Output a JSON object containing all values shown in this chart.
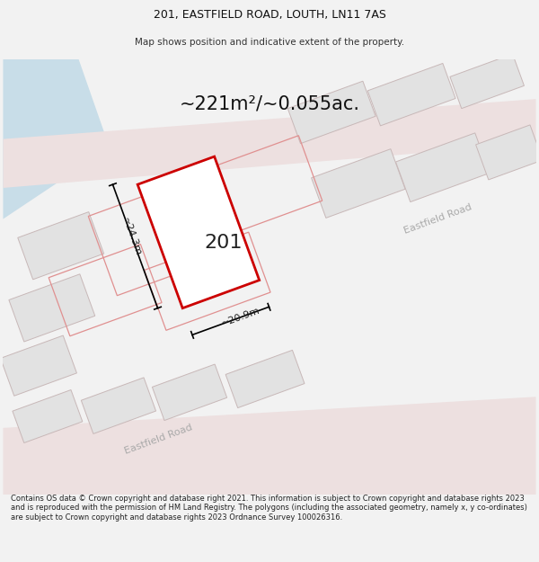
{
  "title": "201, EASTFIELD ROAD, LOUTH, LN11 7AS",
  "subtitle": "Map shows position and indicative extent of the property.",
  "area_label": "~221m²/~0.055ac.",
  "property_number": "201",
  "dim_height": "~24.3m",
  "dim_width": "~20.9m",
  "road_label_bottom": "Eastfield Road",
  "road_label_right": "Eastfield Road",
  "footer": "Contains OS data © Crown copyright and database right 2021. This information is subject to Crown copyright and database rights 2023 and is reproduced with the permission of HM Land Registry. The polygons (including the associated geometry, namely x, y co-ordinates) are subject to Crown copyright and database rights 2023 Ordnance Survey 100026316.",
  "bg_color": "#f2f2f2",
  "map_bg": "#ffffff",
  "property_outline": "#cc0000",
  "blue_road_fill": "#c8dde8",
  "title_fontsize": 9,
  "subtitle_fontsize": 7.5,
  "area_fontsize": 15,
  "number_fontsize": 16,
  "footer_fontsize": 6.0,
  "dim_fontsize": 8,
  "road_fontsize": 8
}
